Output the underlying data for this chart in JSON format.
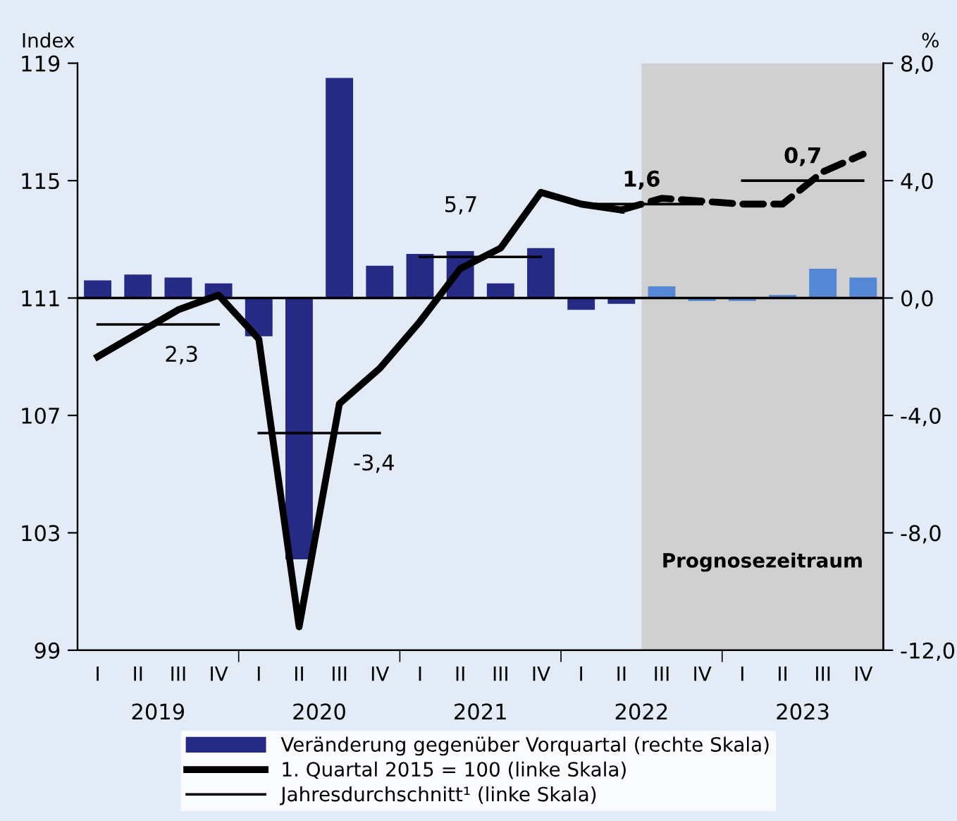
{
  "chart_data": {
    "type": "bar",
    "ylabel": "Index",
    "y2label": "%",
    "categories": [
      "I",
      "II",
      "III",
      "IV",
      "I",
      "II",
      "III",
      "IV",
      "I",
      "II",
      "III",
      "IV",
      "I",
      "II",
      "III",
      "IV",
      "I",
      "II",
      "III",
      "IV"
    ],
    "ylim": [
      99,
      119
    ],
    "yticks": [
      99,
      103,
      107,
      111,
      115,
      119
    ],
    "y2lim": [
      -12,
      8
    ],
    "y2ticks": [
      {
        "value": -12,
        "label": "-12,0"
      },
      {
        "value": -8,
        "label": "-8,0"
      },
      {
        "value": -4,
        "label": "-4,0"
      },
      {
        "value": 0,
        "label": "0,0"
      },
      {
        "value": 4,
        "label": "4,0"
      },
      {
        "value": 8,
        "label": "8,0"
      }
    ],
    "series": [
      {
        "name": "Veränderung gegenüber Vorquartal (rechte Skala)",
        "axis": "y2",
        "color": "#252a84",
        "colors": [
          "#252a84",
          "#252a84",
          "#252a84",
          "#252a84",
          "#252a84",
          "#252a84",
          "#252a84",
          "#252a84",
          "#252a84",
          "#252a84",
          "#252a84",
          "#252a84",
          "#252a84",
          "#252a84",
          "#5588d4",
          "#5588d4",
          "#5588d4",
          "#5588d4",
          "#5588d4",
          "#5588d4"
        ],
        "values": [
          0.6,
          0.8,
          0.7,
          0.5,
          -1.3,
          -8.9,
          7.5,
          1.1,
          1.5,
          1.6,
          0.5,
          1.7,
          -0.4,
          -0.2,
          0.4,
          -0.1,
          -0.1,
          0.1,
          1.0,
          0.7
        ]
      },
      {
        "name": "1. Quartal 2015 = 100 (linke Skala)",
        "type": "line",
        "color": "#000000",
        "line_style": "solid",
        "values": [
          109.0,
          109.8,
          110.6,
          111.1,
          109.6,
          99.8,
          107.4,
          108.6,
          110.2,
          112.0,
          112.7,
          114.6,
          114.2,
          114.0,
          null,
          null,
          null,
          null,
          null,
          null
        ]
      },
      {
        "type": "line",
        "color": "#000000",
        "line_style": "dashed",
        "values": [
          null,
          null,
          null,
          null,
          null,
          null,
          null,
          null,
          null,
          null,
          null,
          null,
          null,
          114.0,
          114.4,
          114.3,
          114.2,
          114.2,
          115.3,
          115.9
        ]
      },
      {
        "name": "Jahresdurchschnitt¹ (linke Skala)",
        "type": "step",
        "color": "#000000",
        "values": [
          110.1,
          110.1,
          110.1,
          110.1,
          null,
          null,
          null,
          null,
          null,
          null,
          null,
          null,
          null,
          null,
          null,
          null,
          null,
          null,
          null,
          null
        ]
      },
      {
        "type": "step",
        "color": "#000000",
        "values": [
          null,
          null,
          null,
          null,
          106.4,
          106.4,
          106.4,
          106.4,
          null,
          null,
          null,
          null,
          null,
          null,
          null,
          null,
          null,
          null,
          null,
          null
        ]
      },
      {
        "type": "step",
        "color": "#000000",
        "values": [
          null,
          null,
          null,
          null,
          null,
          null,
          null,
          null,
          112.4,
          112.4,
          112.4,
          112.4,
          null,
          null,
          null,
          null,
          null,
          null,
          null,
          null
        ]
      },
      {
        "type": "step",
        "color": "#000000",
        "values": [
          null,
          null,
          null,
          null,
          null,
          null,
          null,
          null,
          null,
          null,
          null,
          null,
          114.2,
          114.2,
          114.2,
          114.2,
          null,
          null,
          null,
          null
        ]
      },
      {
        "type": "step",
        "color": "#000000",
        "values": [
          null,
          null,
          null,
          null,
          null,
          null,
          null,
          null,
          null,
          null,
          null,
          null,
          null,
          null,
          null,
          null,
          115.0,
          115.0,
          115.0,
          115.0
        ]
      }
    ],
    "ref_lines": [
      {
        "axis": "y2",
        "value": 0,
        "color": "#000000"
      }
    ],
    "annotations": [
      "2019",
      "2020",
      "2021",
      "2022",
      "2023",
      "2,3",
      "-3,4",
      "5,7",
      "1,6",
      "0,7",
      "Prognosezeitraum"
    ],
    "legend": "bottom",
    "grid": false
  }
}
